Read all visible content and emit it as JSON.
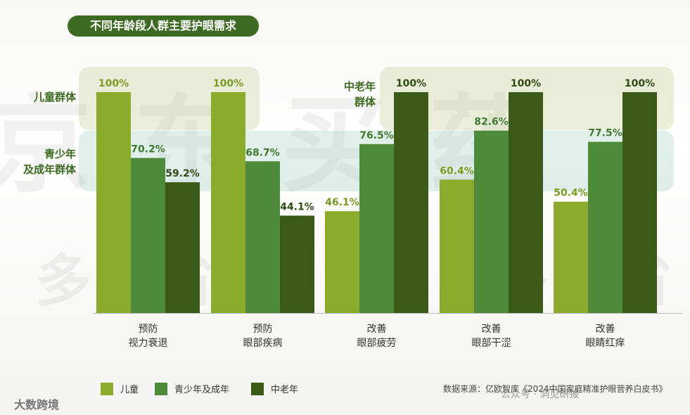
{
  "title": "不同年龄段人群主要护眼需求",
  "groups": [
    {
      "label": "儿童群体"
    },
    {
      "label": "青少年\n及成年群体"
    },
    {
      "label": "中老年\n群体"
    }
  ],
  "watermark_line1": "京东买药",
  "watermark_line2": "多省·有多省",
  "chart_data": {
    "type": "bar",
    "categories": [
      "预防\n视力衰退",
      "预防\n眼部疾病",
      "改善\n眼部疲劳",
      "改善\n眼部干涩",
      "改善\n眼睛红痒"
    ],
    "series": [
      {
        "name": "儿童",
        "values": [
          100,
          100,
          46.1,
          60.4,
          50.4
        ],
        "labels": [
          "100%",
          "100%",
          "46.1%",
          "60.4%",
          "50.4%"
        ],
        "color": "#8aab2c"
      },
      {
        "name": "青少年及成年",
        "values": [
          70.2,
          68.7,
          76.5,
          82.6,
          77.5
        ],
        "labels": [
          "70.2%",
          "68.7%",
          "76.5%",
          "82.6%",
          "77.5%"
        ],
        "color": "#4d8a3a"
      },
      {
        "name": "中老年",
        "values": [
          59.2,
          44.1,
          100,
          100,
          100
        ],
        "labels": [
          "59.2%",
          "44.1%",
          "100%",
          "100%",
          "100%"
        ],
        "color": "#3b5a18"
      }
    ],
    "ylim": [
      0,
      100
    ]
  },
  "source_text": "数据来源：亿欧智库《2024中国家庭精准护眼营养白皮书》",
  "wechat_mark": "公众号 · 洞见研报",
  "brand_mark": "大数跨境"
}
